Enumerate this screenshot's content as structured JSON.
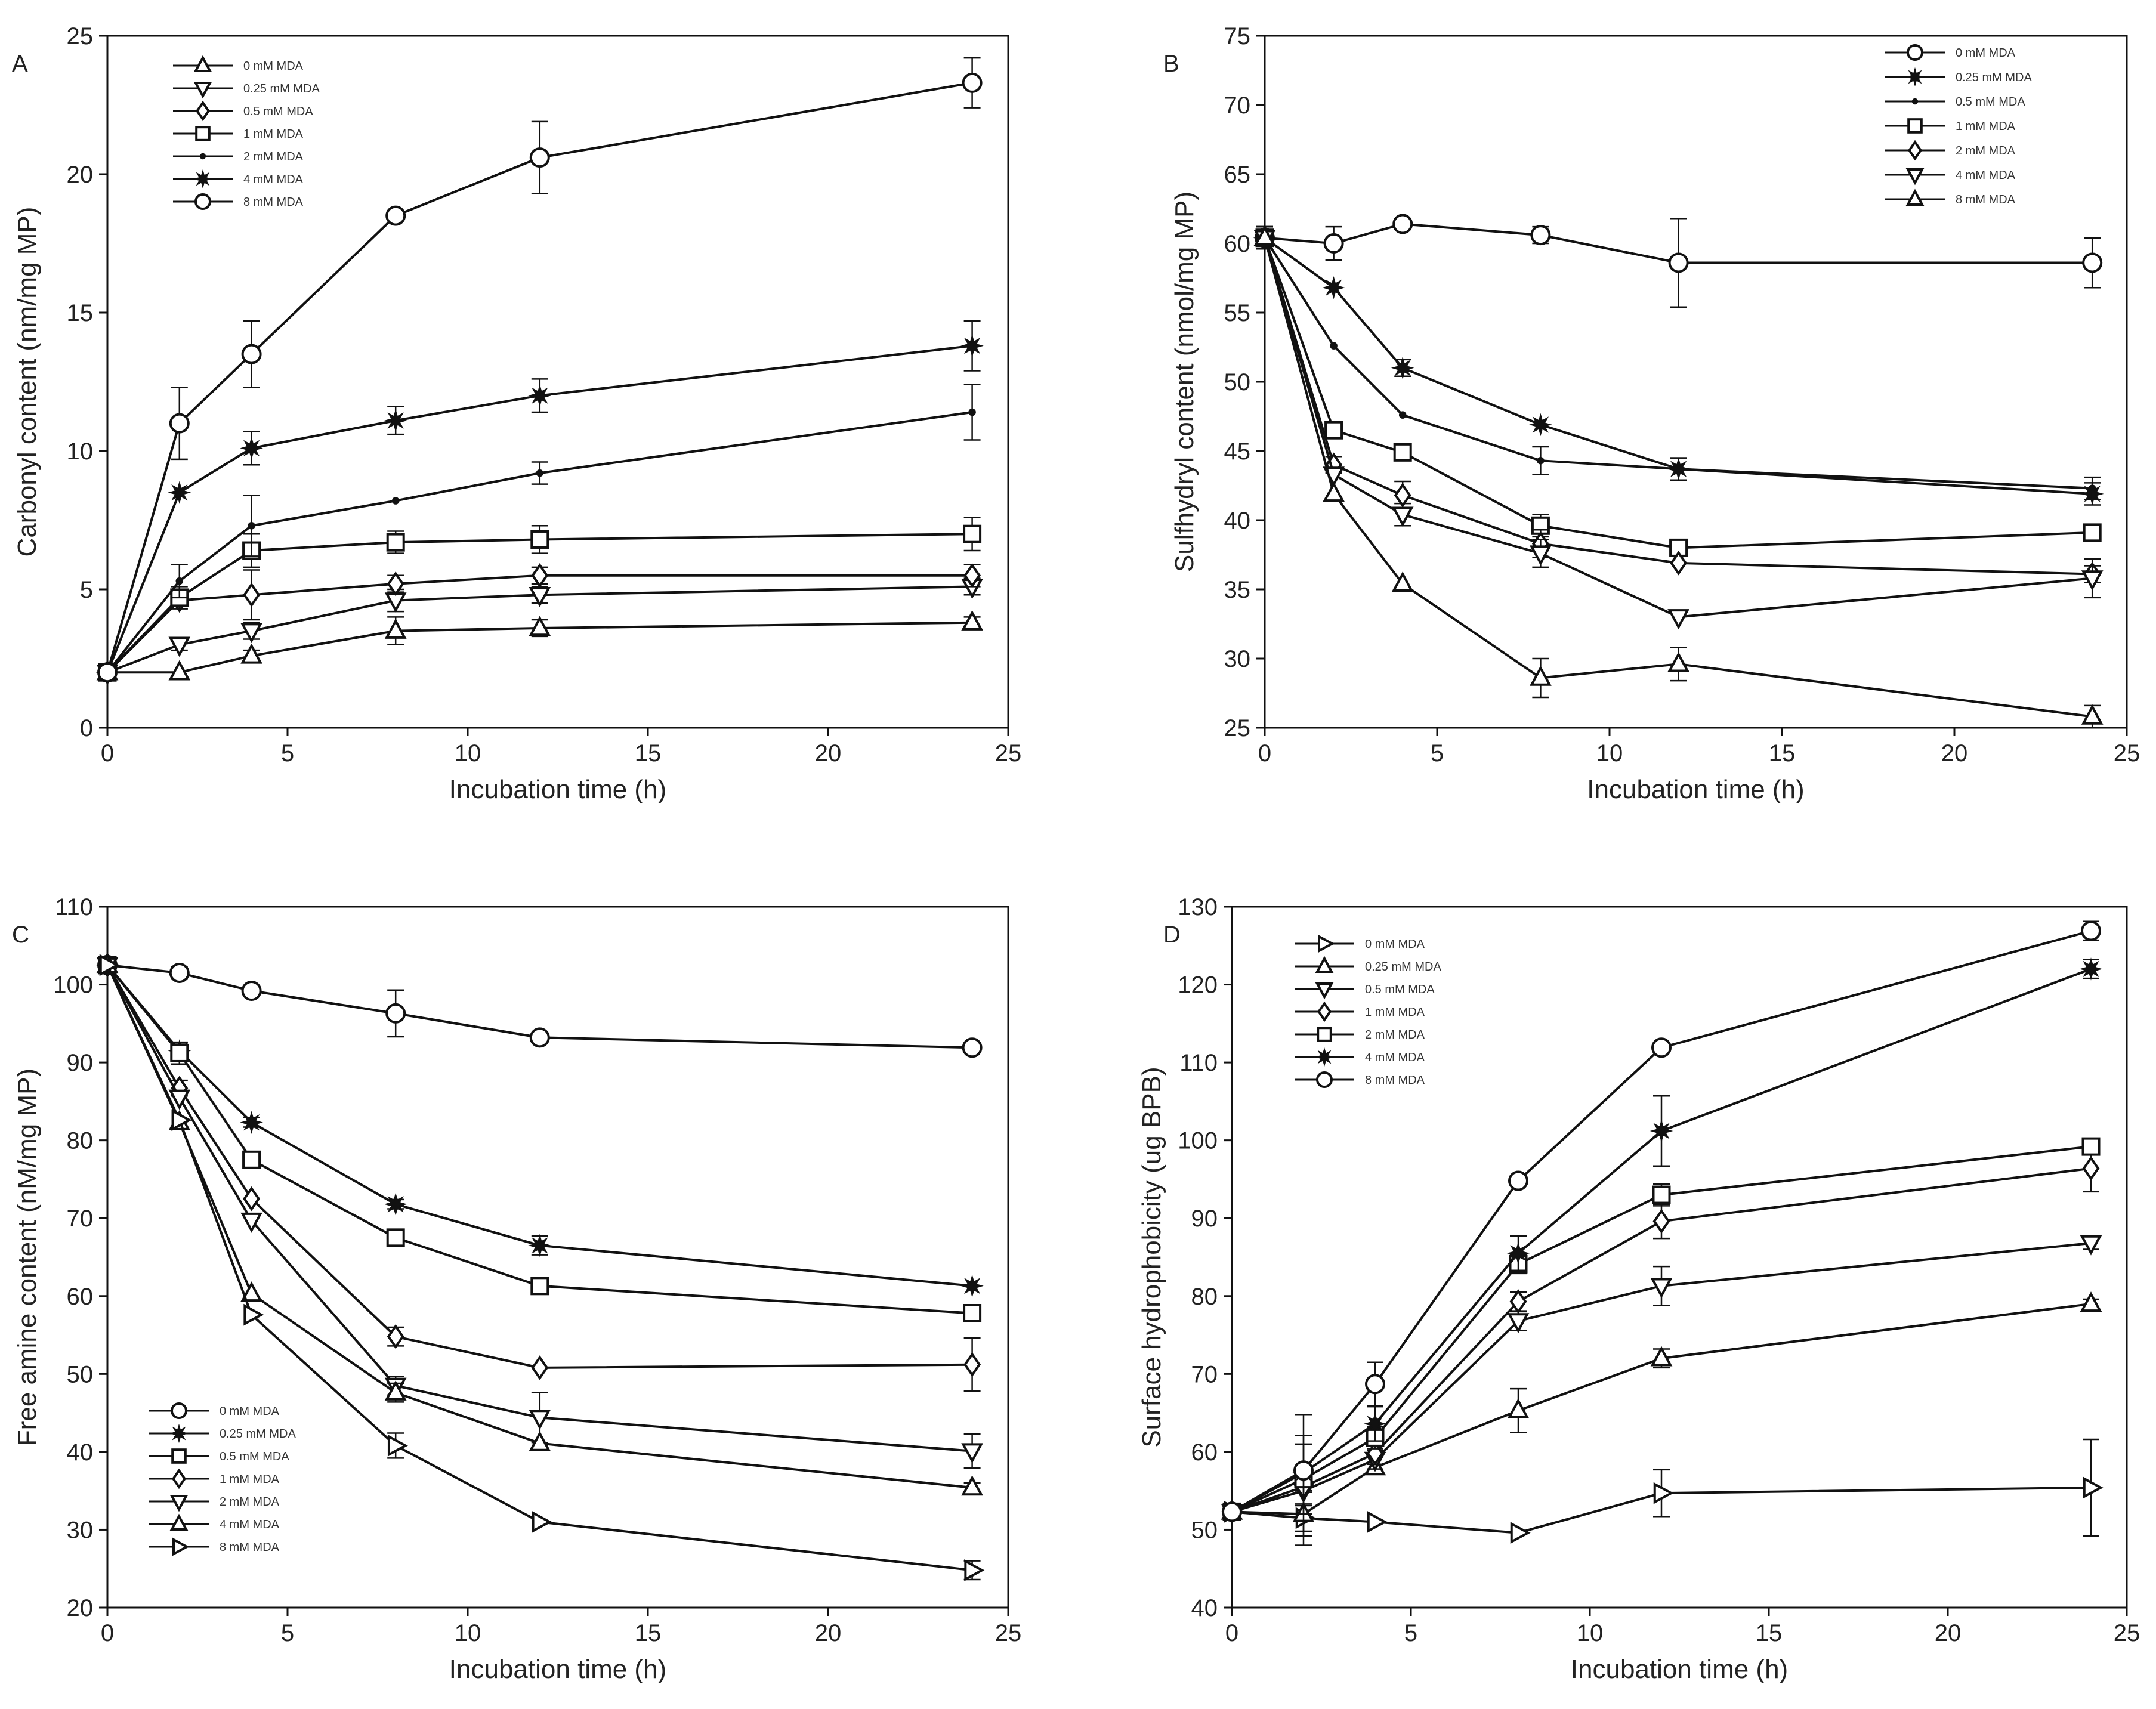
{
  "figure": {
    "background": "#ffffff",
    "ink": "#111111"
  },
  "chart_data": [
    {
      "id": "A",
      "type": "line",
      "panel_label": "A",
      "xlabel": "Incubation time (h)",
      "ylabel": "Carbonyl content (nm/mg MP)",
      "xlim": [
        0,
        25
      ],
      "ylim": [
        0,
        25
      ],
      "xticks": [
        0,
        5,
        10,
        15,
        20,
        25
      ],
      "yticks": [
        0,
        5,
        10,
        15,
        20,
        25
      ],
      "legend_position": "top-left",
      "series": [
        {
          "name": "0 mM MDA",
          "marker": "triangle-up",
          "x": [
            0,
            2,
            4,
            8,
            12,
            24
          ],
          "y": [
            2.0,
            2.0,
            2.6,
            3.5,
            3.6,
            3.8
          ],
          "err": [
            0,
            0,
            0.2,
            0.5,
            0.3,
            0.2
          ]
        },
        {
          "name": "0.25 mM MDA",
          "marker": "triangle-down",
          "x": [
            0,
            2,
            4,
            8,
            12,
            24
          ],
          "y": [
            2.0,
            3.0,
            3.5,
            4.6,
            4.8,
            5.1
          ],
          "err": [
            0,
            0.2,
            0.3,
            0.4,
            0.3,
            0.3
          ]
        },
        {
          "name": "0.5 mM MDA",
          "marker": "diamond",
          "x": [
            0,
            2,
            4,
            8,
            12,
            24
          ],
          "y": [
            2.0,
            4.6,
            4.8,
            5.2,
            5.5,
            5.5
          ],
          "err": [
            0,
            0.3,
            0.9,
            0.3,
            0.3,
            0.4
          ]
        },
        {
          "name": "1 mM MDA",
          "marker": "square",
          "x": [
            0,
            2,
            4,
            8,
            12,
            24
          ],
          "y": [
            2.0,
            4.7,
            6.4,
            6.7,
            6.8,
            7.0
          ],
          "err": [
            0,
            0.4,
            0.6,
            0.4,
            0.5,
            0.6
          ]
        },
        {
          "name": "2 mM MDA",
          "marker": "dot",
          "x": [
            0,
            2,
            4,
            8,
            12,
            24
          ],
          "y": [
            2.0,
            5.3,
            7.3,
            8.2,
            9.2,
            11.4
          ],
          "err": [
            0,
            0.6,
            1.1,
            0,
            0.4,
            1.0
          ]
        },
        {
          "name": "4 mM MDA",
          "marker": "star",
          "x": [
            0,
            2,
            4,
            8,
            12,
            24
          ],
          "y": [
            2.0,
            8.5,
            10.1,
            11.1,
            12.0,
            13.8
          ],
          "err": [
            0,
            0,
            0.6,
            0.5,
            0.6,
            0.9
          ]
        },
        {
          "name": "8 mM MDA",
          "marker": "circle",
          "x": [
            0,
            2,
            4,
            8,
            12,
            24
          ],
          "y": [
            2.0,
            11.0,
            13.5,
            18.5,
            20.6,
            23.3
          ],
          "err": [
            0,
            1.3,
            1.2,
            0,
            1.3,
            0.9
          ]
        }
      ]
    },
    {
      "id": "B",
      "type": "line",
      "panel_label": "B",
      "xlabel": "Incubation time (h)",
      "ylabel": "Sulfhydryl content (nmol/mg MP)",
      "xlim": [
        0,
        25
      ],
      "ylim": [
        25,
        75
      ],
      "xticks": [
        0,
        5,
        10,
        15,
        20,
        25
      ],
      "yticks": [
        25,
        30,
        35,
        40,
        45,
        50,
        55,
        60,
        65,
        70,
        75
      ],
      "legend_position": "top-right",
      "series": [
        {
          "name": "0 mM MDA",
          "marker": "circle",
          "x": [
            0,
            2,
            4,
            8,
            12,
            24
          ],
          "y": [
            60.4,
            60.0,
            61.4,
            60.6,
            58.6,
            58.6
          ],
          "err": [
            0.8,
            1.2,
            0,
            0.6,
            3.2,
            1.8
          ]
        },
        {
          "name": "0.25 mM MDA",
          "marker": "star",
          "x": [
            0,
            2,
            4,
            8,
            12,
            24
          ],
          "y": [
            60.4,
            56.8,
            51.0,
            46.9,
            43.7,
            41.9
          ],
          "err": [
            0.8,
            0,
            0.6,
            0,
            0.8,
            0.8
          ]
        },
        {
          "name": "0.5 mM MDA",
          "marker": "dot",
          "x": [
            0,
            2,
            4,
            8,
            12,
            24
          ],
          "y": [
            60.4,
            52.6,
            47.6,
            44.3,
            43.7,
            42.3
          ],
          "err": [
            0.8,
            0,
            0,
            1.0,
            0.8,
            0.8
          ]
        },
        {
          "name": "1 mM MDA",
          "marker": "square",
          "x": [
            0,
            2,
            4,
            8,
            12,
            24
          ],
          "y": [
            60.4,
            46.5,
            44.9,
            39.6,
            38.0,
            39.1
          ],
          "err": [
            0.8,
            0,
            0,
            0.8,
            0,
            0
          ]
        },
        {
          "name": "2 mM MDA",
          "marker": "diamond",
          "x": [
            0,
            2,
            4,
            8,
            12,
            24
          ],
          "y": [
            60.4,
            44.0,
            41.8,
            38.3,
            36.9,
            36.1
          ],
          "err": [
            0.8,
            0.6,
            1.0,
            1.0,
            0,
            0.6
          ]
        },
        {
          "name": "4 mM MDA",
          "marker": "triangle-down",
          "x": [
            0,
            2,
            4,
            8,
            12,
            24
          ],
          "y": [
            60.4,
            43.3,
            40.4,
            37.6,
            33.0,
            35.8
          ],
          "err": [
            0.8,
            0,
            0.8,
            1.0,
            0,
            1.4
          ]
        },
        {
          "name": "8 mM MDA",
          "marker": "triangle-up",
          "x": [
            0,
            2,
            4,
            8,
            12,
            24
          ],
          "y": [
            60.4,
            41.9,
            35.4,
            28.6,
            29.6,
            25.8
          ],
          "err": [
            0.8,
            0,
            0,
            1.4,
            1.2,
            0.8
          ]
        }
      ]
    },
    {
      "id": "C",
      "type": "line",
      "panel_label": "C",
      "xlabel": "Incubation time (h)",
      "ylabel": "Free amine content (nM/mg MP)",
      "xlim": [
        0,
        25
      ],
      "ylim": [
        20,
        110
      ],
      "xticks": [
        0,
        5,
        10,
        15,
        20,
        25
      ],
      "yticks": [
        20,
        30,
        40,
        50,
        60,
        70,
        80,
        90,
        100,
        110
      ],
      "legend_position": "bottom-left",
      "series": [
        {
          "name": "0 mM MDA",
          "marker": "circle",
          "x": [
            0,
            2,
            4,
            8,
            12,
            24
          ],
          "y": [
            102.5,
            101.5,
            99.2,
            96.3,
            93.2,
            91.9
          ],
          "err": [
            0.8,
            0.8,
            0,
            3.0,
            0,
            0.4
          ]
        },
        {
          "name": "0.25 mM MDA",
          "marker": "star",
          "x": [
            0,
            2,
            4,
            8,
            12,
            24
          ],
          "y": [
            102.5,
            91.5,
            82.3,
            71.8,
            66.5,
            61.3
          ],
          "err": [
            0.8,
            1.0,
            0.6,
            0.6,
            1.2,
            0
          ]
        },
        {
          "name": "0.5 mM MDA",
          "marker": "square",
          "x": [
            0,
            2,
            4,
            8,
            12,
            24
          ],
          "y": [
            102.5,
            91.2,
            77.5,
            67.5,
            61.3,
            57.8
          ],
          "err": [
            0.8,
            1.4,
            0,
            0,
            0,
            0
          ]
        },
        {
          "name": "1 mM MDA",
          "marker": "diamond",
          "x": [
            0,
            2,
            4,
            8,
            12,
            24
          ],
          "y": [
            102.5,
            86.7,
            72.5,
            54.8,
            50.8,
            51.2
          ],
          "err": [
            0.8,
            1.0,
            0,
            1.2,
            0,
            3.4
          ]
        },
        {
          "name": "2 mM MDA",
          "marker": "triangle-down",
          "x": [
            0,
            2,
            4,
            8,
            12,
            24
          ],
          "y": [
            102.5,
            85.5,
            69.7,
            48.5,
            44.4,
            40.1
          ],
          "err": [
            0.8,
            0,
            0,
            1.2,
            3.2,
            2.2
          ]
        },
        {
          "name": "4 mM MDA",
          "marker": "triangle-up",
          "x": [
            0,
            2,
            4,
            8,
            12,
            24
          ],
          "y": [
            102.5,
            82.3,
            60.3,
            47.6,
            41.1,
            35.4
          ],
          "err": [
            0.8,
            0,
            0,
            1.2,
            0,
            0.6
          ]
        },
        {
          "name": "8 mM MDA",
          "marker": "triangle-right",
          "x": [
            0,
            2,
            4,
            8,
            12,
            24
          ],
          "y": [
            102.5,
            82.6,
            57.6,
            40.8,
            31.0,
            24.8
          ],
          "err": [
            0.8,
            0,
            0,
            1.6,
            0,
            1.2
          ]
        }
      ]
    },
    {
      "id": "D",
      "type": "line",
      "panel_label": "D",
      "xlabel": "Incubation time (h)",
      "ylabel": "Surface hydrophobicity (ug BPB)",
      "xlim": [
        0,
        25
      ],
      "ylim": [
        40,
        130
      ],
      "xticks": [
        0,
        5,
        10,
        15,
        20,
        25
      ],
      "yticks": [
        40,
        50,
        60,
        70,
        80,
        90,
        100,
        110,
        120,
        130
      ],
      "legend_position": "top-left",
      "series": [
        {
          "name": "0 mM MDA",
          "marker": "triangle-right",
          "x": [
            0,
            2,
            4,
            8,
            12,
            24
          ],
          "y": [
            52.3,
            51.5,
            51.0,
            49.6,
            54.7,
            55.4
          ],
          "err": [
            0.8,
            3.5,
            0,
            0,
            3.0,
            6.2
          ]
        },
        {
          "name": "0.25 mM MDA",
          "marker": "triangle-up",
          "x": [
            0,
            2,
            4,
            8,
            12,
            24
          ],
          "y": [
            52.3,
            52.0,
            58.0,
            65.3,
            72.0,
            79.0
          ],
          "err": [
            0.8,
            2.8,
            0,
            2.8,
            1.2,
            0.6
          ]
        },
        {
          "name": "0.5 mM MDA",
          "marker": "triangle-down",
          "x": [
            0,
            2,
            4,
            8,
            12,
            24
          ],
          "y": [
            52.3,
            55.0,
            59.0,
            76.8,
            81.3,
            86.8
          ],
          "err": [
            0.8,
            3.0,
            1.2,
            1.2,
            2.5,
            0.8
          ]
        },
        {
          "name": "1 mM MDA",
          "marker": "diamond",
          "x": [
            0,
            2,
            4,
            8,
            12,
            24
          ],
          "y": [
            52.3,
            55.5,
            59.8,
            79.3,
            89.6,
            96.4
          ],
          "err": [
            0.8,
            2.2,
            1.4,
            1.2,
            2.2,
            3.0
          ]
        },
        {
          "name": "2 mM MDA",
          "marker": "square",
          "x": [
            0,
            2,
            4,
            8,
            12,
            24
          ],
          "y": [
            52.3,
            56.5,
            61.8,
            84.1,
            93.0,
            99.2
          ],
          "err": [
            0.8,
            4.5,
            1.4,
            1.2,
            1.4,
            0
          ]
        },
        {
          "name": "4 mM MDA",
          "marker": "star",
          "x": [
            0,
            2,
            4,
            8,
            12,
            24
          ],
          "y": [
            52.3,
            57.3,
            63.6,
            85.5,
            101.2,
            122.0
          ],
          "err": [
            0.8,
            7.5,
            2.2,
            2.2,
            4.5,
            1.2
          ]
        },
        {
          "name": "8 mM MDA",
          "marker": "circle",
          "x": [
            0,
            2,
            4,
            8,
            12,
            24
          ],
          "y": [
            52.3,
            57.6,
            68.7,
            94.8,
            111.9,
            126.9
          ],
          "err": [
            0.8,
            4.5,
            2.8,
            0,
            0,
            1.2
          ]
        }
      ]
    }
  ]
}
